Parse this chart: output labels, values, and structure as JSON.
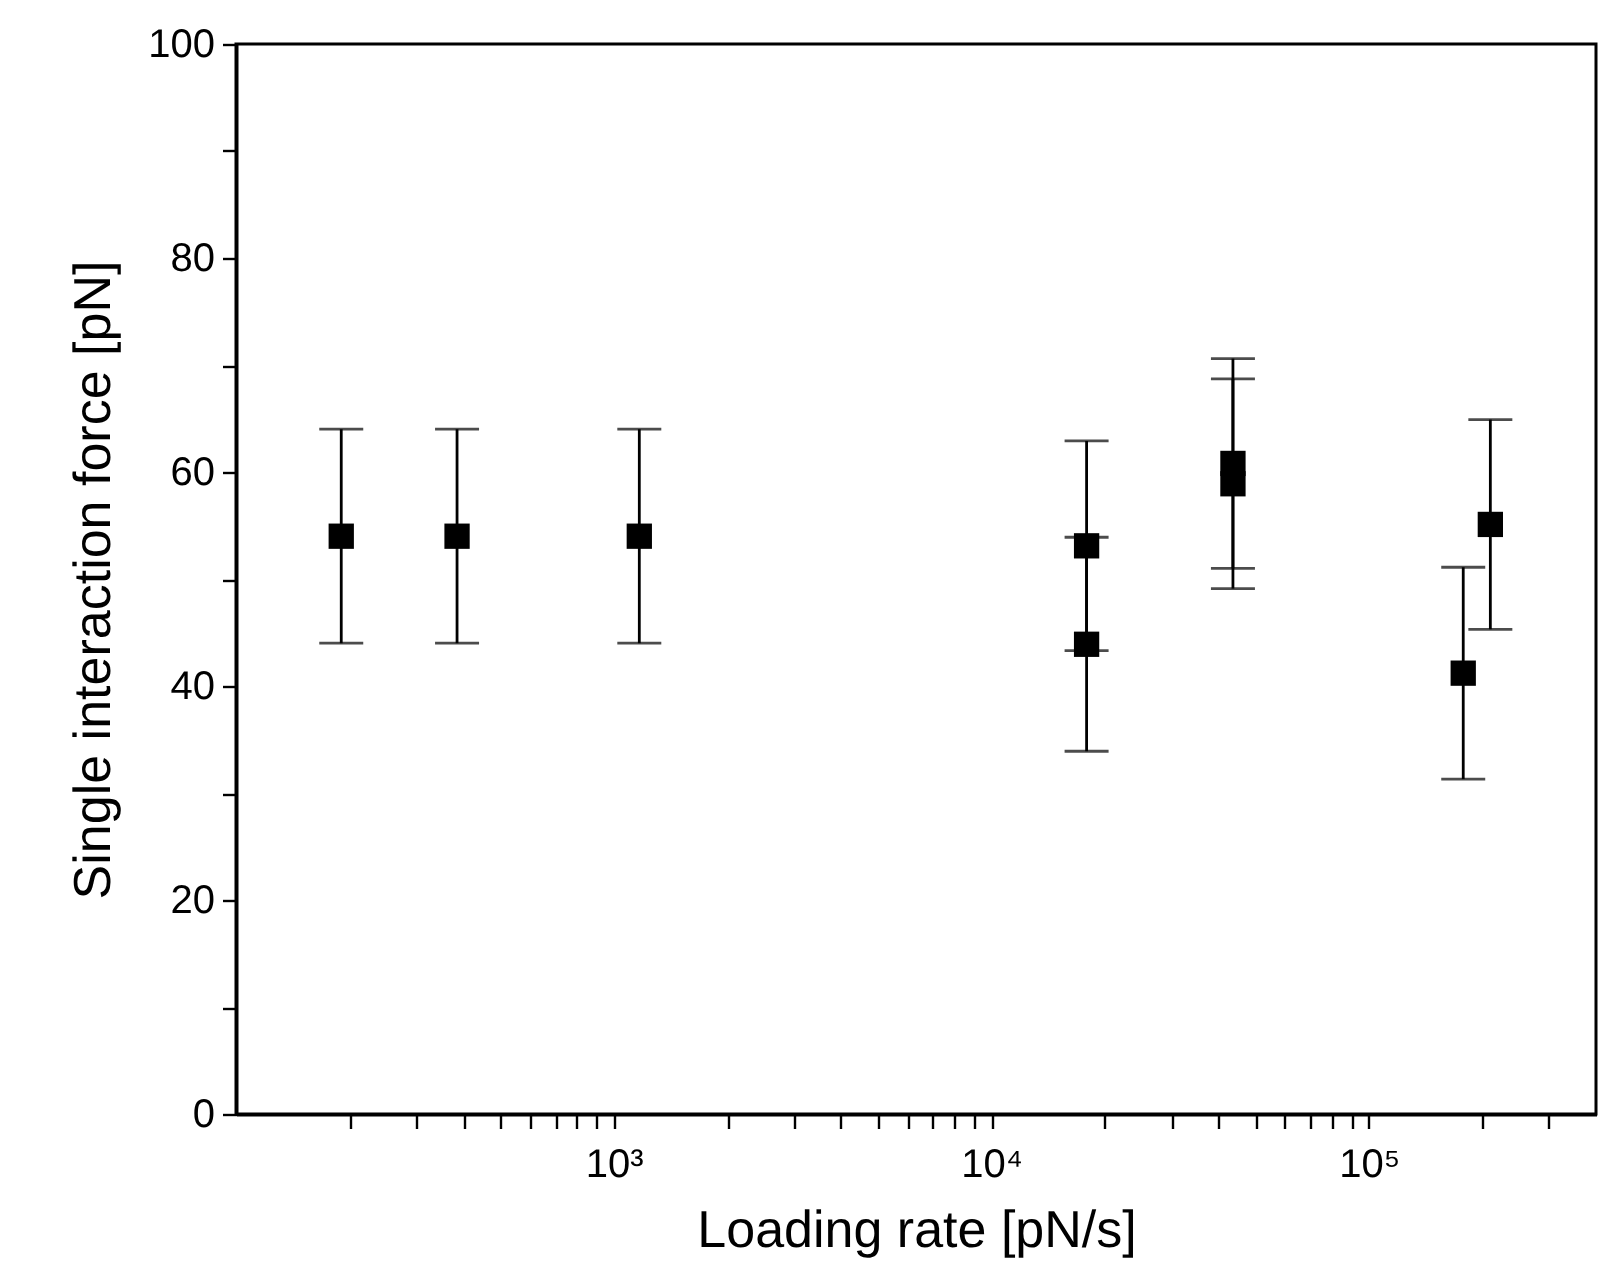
{
  "chart_data": {
    "type": "scatter",
    "xlabel": "Loading rate [pN/s]",
    "ylabel": "Single interaction force [pN]",
    "log": "x",
    "marker": "square",
    "grid": false,
    "x": [
      190,
      385,
      1170,
      17900,
      17900,
      43700,
      43700,
      178000,
      210000
    ],
    "series": [
      {
        "color": "#000000",
        "values": [
          54,
          54,
          54,
          53.1,
          43.9,
          60.8,
          58.9,
          41.2,
          55.1
        ],
        "errors": [
          10,
          10,
          10,
          9.8,
          10,
          9.8,
          9.8,
          9.9,
          9.8
        ]
      }
    ],
    "xlim": [
      100,
      400000
    ],
    "ylim": [
      0,
      100
    ],
    "xticks": [
      {
        "value": 200,
        "label": null
      },
      {
        "value": 300,
        "label": null
      },
      {
        "value": 400,
        "label": null
      },
      {
        "value": 500,
        "label": null
      },
      {
        "value": 600,
        "label": null
      },
      {
        "value": 700,
        "label": null
      },
      {
        "value": 800,
        "label": null
      },
      {
        "value": 900,
        "label": null
      },
      {
        "value": 1000,
        "label": "10³"
      },
      {
        "value": 2000,
        "label": null
      },
      {
        "value": 3000,
        "label": null
      },
      {
        "value": 4000,
        "label": null
      },
      {
        "value": 5000,
        "label": null
      },
      {
        "value": 6000,
        "label": null
      },
      {
        "value": 7000,
        "label": null
      },
      {
        "value": 8000,
        "label": null
      },
      {
        "value": 9000,
        "label": null
      },
      {
        "value": 10000,
        "label": "10⁴"
      },
      {
        "value": 20000,
        "label": null
      },
      {
        "value": 30000,
        "label": null
      },
      {
        "value": 40000,
        "label": null
      },
      {
        "value": 50000,
        "label": null
      },
      {
        "value": 60000,
        "label": null
      },
      {
        "value": 70000,
        "label": null
      },
      {
        "value": 80000,
        "label": null
      },
      {
        "value": 90000,
        "label": null
      },
      {
        "value": 100000,
        "label": "10⁵"
      },
      {
        "value": 200000,
        "label": null
      },
      {
        "value": 300000,
        "label": null
      }
    ],
    "yticks": [
      0,
      {
        "value": 10,
        "label": null
      },
      20,
      {
        "value": 30,
        "label": null
      },
      40,
      {
        "value": 50,
        "label": null
      },
      60,
      {
        "value": 70,
        "label": null
      },
      80,
      {
        "value": 90,
        "label": null
      },
      100
    ]
  }
}
